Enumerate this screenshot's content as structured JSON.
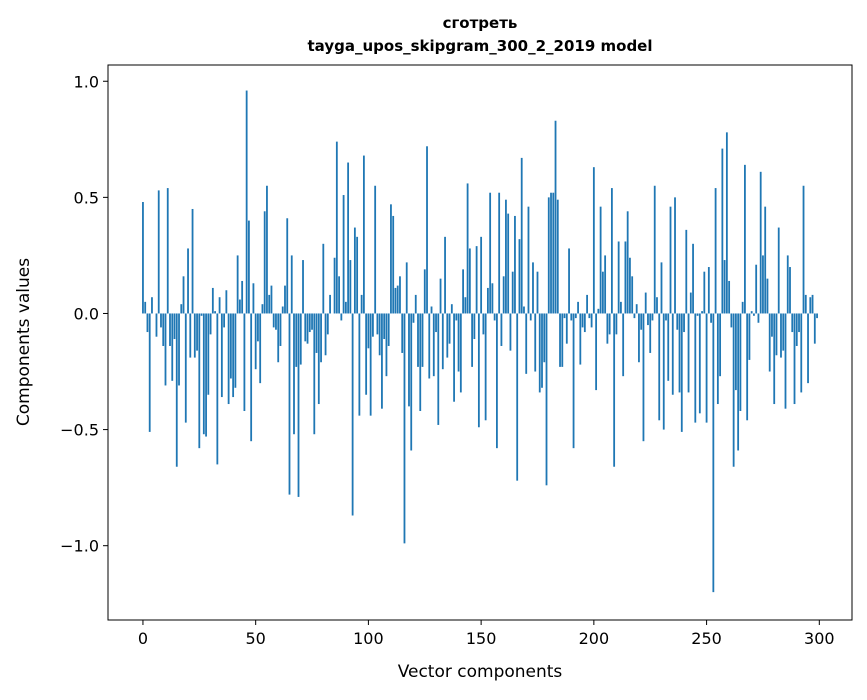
{
  "chart_data": {
    "type": "bar",
    "title_line1": "сготреть",
    "title_line2": "tayga_upos_skipgram_300_2_2019 model",
    "xlabel": "Vector components",
    "ylabel": "Components values",
    "xlim": [
      -15.5,
      314.5
    ],
    "ylim": [
      -1.32,
      1.07
    ],
    "xticks": [
      0,
      50,
      100,
      150,
      200,
      250,
      300
    ],
    "xtick_labels": [
      "0",
      "50",
      "100",
      "150",
      "200",
      "250",
      "300"
    ],
    "yticks": [
      1.0,
      0.5,
      0.0,
      -0.5,
      -1.0
    ],
    "ytick_labels": [
      "1.0",
      "0.5",
      "0.0",
      "−0.5",
      "−1.0"
    ],
    "grid": false,
    "bar_color": "#1f77b4",
    "values": [
      0.48,
      0.05,
      -0.08,
      -0.51,
      0.07,
      0.0,
      -0.1,
      0.53,
      -0.06,
      -0.14,
      -0.31,
      0.54,
      -0.14,
      -0.29,
      -0.11,
      -0.66,
      -0.31,
      0.04,
      0.16,
      -0.47,
      0.28,
      -0.19,
      0.45,
      -0.19,
      -0.16,
      -0.58,
      -0.01,
      -0.52,
      -0.53,
      -0.35,
      -0.09,
      0.11,
      0.01,
      -0.65,
      0.07,
      -0.36,
      -0.06,
      0.1,
      -0.39,
      -0.28,
      -0.36,
      -0.32,
      0.25,
      0.06,
      0.14,
      -0.42,
      0.96,
      0.4,
      -0.55,
      0.13,
      -0.24,
      -0.12,
      -0.3,
      0.04,
      0.44,
      0.55,
      0.08,
      0.12,
      -0.06,
      -0.07,
      -0.21,
      -0.14,
      0.03,
      0.12,
      0.41,
      -0.78,
      0.25,
      -0.52,
      -0.23,
      -0.79,
      -0.22,
      0.23,
      -0.12,
      -0.13,
      -0.08,
      -0.07,
      -0.52,
      -0.17,
      -0.39,
      -0.21,
      0.3,
      -0.18,
      -0.09,
      0.08,
      0.0,
      0.24,
      0.74,
      0.16,
      -0.03,
      0.51,
      0.05,
      0.65,
      0.23,
      -0.87,
      0.37,
      0.33,
      -0.44,
      0.08,
      0.68,
      -0.35,
      -0.15,
      -0.44,
      -0.1,
      0.55,
      -0.09,
      -0.18,
      -0.41,
      -0.11,
      -0.27,
      -0.14,
      0.47,
      0.42,
      0.11,
      0.12,
      0.16,
      -0.17,
      -0.99,
      0.22,
      -0.4,
      -0.59,
      -0.04,
      0.08,
      -0.23,
      -0.42,
      -0.23,
      0.19,
      0.72,
      -0.28,
      0.03,
      -0.27,
      -0.08,
      -0.48,
      0.15,
      -0.24,
      0.33,
      -0.19,
      -0.13,
      0.04,
      -0.38,
      -0.03,
      -0.25,
      -0.34,
      0.19,
      0.07,
      0.56,
      0.28,
      -0.23,
      -0.11,
      0.29,
      -0.49,
      0.33,
      -0.09,
      -0.46,
      0.11,
      0.52,
      0.13,
      -0.03,
      -0.58,
      0.52,
      -0.14,
      0.16,
      0.49,
      0.43,
      -0.16,
      0.18,
      0.42,
      -0.72,
      0.32,
      0.67,
      0.03,
      -0.26,
      0.46,
      -0.03,
      0.22,
      -0.25,
      0.18,
      -0.34,
      -0.32,
      -0.21,
      -0.74,
      0.5,
      0.52,
      0.52,
      0.83,
      0.49,
      -0.23,
      -0.23,
      -0.02,
      -0.13,
      0.28,
      -0.03,
      -0.58,
      -0.02,
      0.05,
      -0.22,
      -0.06,
      -0.08,
      0.08,
      -0.02,
      -0.06,
      0.63,
      -0.33,
      0.02,
      0.46,
      0.18,
      0.25,
      -0.13,
      -0.09,
      0.54,
      -0.66,
      -0.09,
      0.31,
      0.05,
      -0.27,
      0.31,
      0.44,
      0.24,
      0.16,
      -0.02,
      0.04,
      -0.21,
      -0.07,
      -0.55,
      0.09,
      -0.05,
      -0.17,
      -0.03,
      0.55,
      0.07,
      -0.46,
      0.22,
      -0.5,
      -0.03,
      -0.29,
      0.46,
      -0.35,
      0.5,
      -0.07,
      -0.34,
      -0.51,
      -0.08,
      0.36,
      -0.34,
      0.09,
      0.3,
      -0.47,
      -0.01,
      -0.43,
      0.01,
      0.18,
      -0.47,
      0.2,
      -0.04,
      -1.2,
      0.54,
      -0.39,
      -0.27,
      0.71,
      0.23,
      0.78,
      0.14,
      -0.06,
      -0.66,
      -0.33,
      -0.59,
      -0.42,
      0.05,
      0.64,
      -0.46,
      -0.2,
      0.01,
      -0.01,
      0.21,
      -0.04,
      0.61,
      0.25,
      0.46,
      0.15,
      -0.25,
      -0.1,
      -0.39,
      -0.18,
      0.37,
      -0.19,
      -0.16,
      -0.41,
      0.25,
      0.2,
      -0.08,
      -0.39,
      -0.14,
      -0.08,
      -0.34,
      0.55,
      0.08,
      -0.3,
      0.07,
      0.08,
      -0.13,
      -0.02
    ]
  }
}
